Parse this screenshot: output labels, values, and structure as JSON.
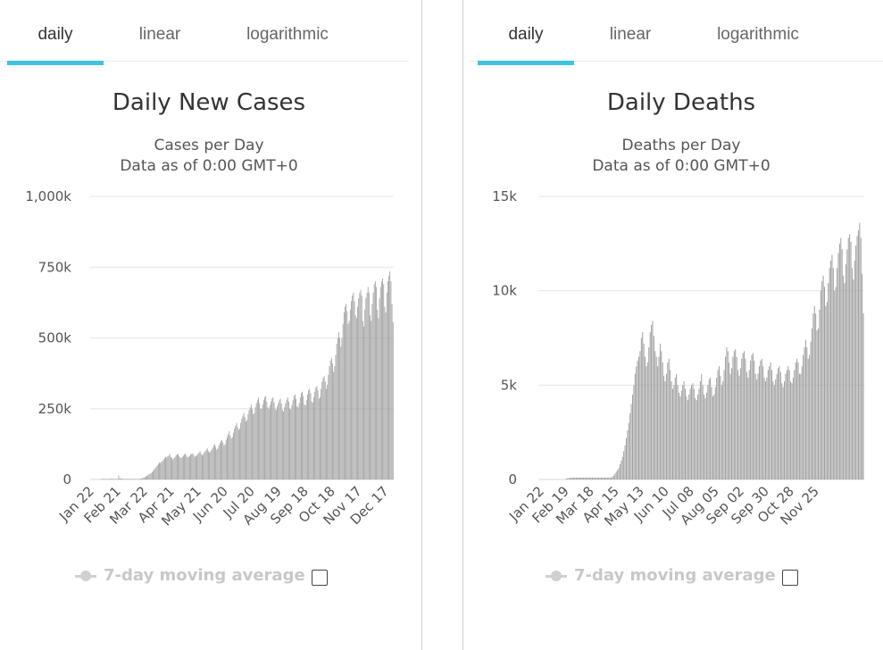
{
  "panels": [
    {
      "tabs": [
        "daily",
        "linear",
        "logarithmic"
      ],
      "active_tab": 0,
      "title": "Daily New Cases",
      "subtitle_1": "Cases per Day",
      "subtitle_2": "Data as of 0:00 GMT+0",
      "legend_label": "7-day moving average",
      "accent": "#3fc3df"
    },
    {
      "tabs": [
        "daily",
        "linear",
        "logarithmic"
      ],
      "active_tab": 0,
      "title": "Daily Deaths",
      "subtitle_1": "Deaths per Day",
      "subtitle_2": "Data as of 0:00 GMT+0",
      "legend_label": "7-day moving average",
      "accent": "#3fc3df"
    }
  ],
  "chart_data": [
    {
      "type": "bar",
      "title": "Daily New Cases",
      "subtitle": "Cases per Day",
      "xlabel": "",
      "ylabel": "",
      "x_start": "Jan 22",
      "x_tick_labels": [
        "Jan 22",
        "Feb 21",
        "Mar 22",
        "Apr 21",
        "May 21",
        "Jun 20",
        "Jul 20",
        "Aug 19",
        "Sep 18",
        "Oct 18",
        "Nov 17",
        "Dec 17"
      ],
      "y_tick_labels": [
        "0",
        "250k",
        "500k",
        "750k",
        "1,000k"
      ],
      "ylim": [
        0,
        1000000
      ],
      "grid": true,
      "bar_color": "#9e9e9e",
      "series": [
        {
          "values": [
            0,
            0,
            0,
            0,
            0,
            0,
            0,
            0,
            0,
            0,
            2000,
            2000,
            2000,
            2000,
            2000,
            2000,
            2000,
            2000,
            2000,
            2000,
            3000,
            3000,
            2000,
            2000,
            2000,
            2000,
            2000,
            14000,
            4000,
            4000,
            3000,
            2000,
            2000,
            2000,
            2000,
            2000,
            2000,
            2000,
            2000,
            2000,
            2000,
            2000,
            2000,
            2000,
            2000,
            2000,
            2000,
            2000,
            3000,
            3000,
            5000,
            7000,
            9000,
            11000,
            12000,
            15000,
            18000,
            20000,
            22000,
            26000,
            30000,
            35000,
            40000,
            45000,
            50000,
            55000,
            60000,
            58000,
            62000,
            65000,
            72000,
            75000,
            80000,
            78000,
            82000,
            85000,
            90000,
            80000,
            76000,
            70000,
            75000,
            80000,
            85000,
            88000,
            90000,
            82000,
            78000,
            76000,
            80000,
            84000,
            88000,
            92000,
            85000,
            78000,
            80000,
            84000,
            88000,
            90000,
            92000,
            86000,
            80000,
            82000,
            86000,
            90000,
            95000,
            100000,
            90000,
            85000,
            88000,
            95000,
            100000,
            105000,
            110000,
            100000,
            95000,
            98000,
            105000,
            112000,
            120000,
            125000,
            115000,
            105000,
            110000,
            120000,
            128000,
            135000,
            140000,
            130000,
            120000,
            125000,
            140000,
            150000,
            160000,
            170000,
            155000,
            145000,
            150000,
            165000,
            180000,
            190000,
            200000,
            185000,
            175000,
            180000,
            200000,
            215000,
            225000,
            235000,
            220000,
            205000,
            210000,
            230000,
            245000,
            255000,
            265000,
            250000,
            230000,
            235000,
            255000,
            270000,
            280000,
            290000,
            270000,
            250000,
            250000,
            265000,
            280000,
            290000,
            295000,
            275000,
            255000,
            250000,
            262000,
            275000,
            285000,
            290000,
            272000,
            250000,
            245000,
            258000,
            270000,
            280000,
            285000,
            268000,
            245000,
            240000,
            255000,
            270000,
            282000,
            290000,
            275000,
            250000,
            248000,
            262000,
            280000,
            295000,
            300000,
            285000,
            258000,
            255000,
            270000,
            290000,
            305000,
            310000,
            295000,
            265000,
            262000,
            280000,
            300000,
            315000,
            320000,
            305000,
            275000,
            272000,
            290000,
            310000,
            325000,
            330000,
            315000,
            285000,
            290000,
            320000,
            345000,
            360000,
            365000,
            345000,
            320000,
            335000,
            370000,
            400000,
            420000,
            430000,
            410000,
            380000,
            400000,
            440000,
            480000,
            500000,
            520000,
            500000,
            470000,
            500000,
            550000,
            590000,
            610000,
            620000,
            595000,
            550000,
            560000,
            600000,
            630000,
            650000,
            660000,
            630000,
            580000,
            570000,
            610000,
            640000,
            660000,
            670000,
            650000,
            560000,
            540000,
            600000,
            640000,
            660000,
            680000,
            660000,
            580000,
            560000,
            620000,
            660000,
            690000,
            700000,
            680000,
            600000,
            570000,
            640000,
            680000,
            700000,
            710000,
            690000,
            610000,
            590000,
            660000,
            700000,
            720000,
            735000,
            700000,
            620000,
            555000
          ]
        }
      ]
    },
    {
      "type": "bar",
      "title": "Daily Deaths",
      "subtitle": "Deaths per Day",
      "xlabel": "",
      "ylabel": "",
      "x_start": "Jan 22",
      "x_tick_labels": [
        "Jan 22",
        "Feb 19",
        "Mar 18",
        "Apr 15",
        "May 13",
        "Jun 10",
        "Jul 08",
        "Aug 05",
        "Sep 02",
        "Sep 30",
        "Oct 28",
        "Nov 25"
      ],
      "y_tick_labels": [
        "0",
        "5k",
        "10k",
        "15k"
      ],
      "ylim": [
        0,
        15000
      ],
      "grid": true,
      "bar_color": "#9e9e9e",
      "series": [
        {
          "values": [
            0,
            0,
            0,
            0,
            0,
            0,
            0,
            0,
            0,
            0,
            0,
            0,
            0,
            0,
            0,
            0,
            0,
            0,
            0,
            0,
            0,
            50,
            60,
            70,
            80,
            90,
            100,
            100,
            100,
            100,
            100,
            100,
            100,
            100,
            100,
            100,
            100,
            100,
            100,
            100,
            100,
            100,
            100,
            100,
            100,
            100,
            100,
            100,
            100,
            100,
            100,
            100,
            100,
            100,
            100,
            100,
            100,
            100,
            150,
            200,
            300,
            400,
            500,
            600,
            800,
            1000,
            1200,
            1500,
            1800,
            2200,
            2600,
            3000,
            3500,
            4000,
            4500,
            5000,
            5600,
            6000,
            6300,
            6500,
            6800,
            7500,
            7800,
            7200,
            6500,
            6000,
            6200,
            7000,
            7800,
            8200,
            8400,
            7600,
            6800,
            6500,
            6000,
            6500,
            7200,
            6800,
            6200,
            5500,
            5200,
            5600,
            6200,
            6400,
            5800,
            5200,
            4800,
            5000,
            5400,
            5600,
            5000,
            4600,
            4400,
            4700,
            5000,
            5200,
            4800,
            4400,
            4200,
            4500,
            4800,
            5000,
            5100,
            4800,
            4300,
            4200,
            4500,
            4800,
            5200,
            5600,
            5000,
            4500,
            4300,
            4600,
            5000,
            5300,
            5400,
            4900,
            4400,
            4500,
            4900,
            5400,
            5800,
            6000,
            5500,
            5000,
            5200,
            5800,
            6500,
            7000,
            6800,
            6200,
            5600,
            5900,
            6500,
            6800,
            6900,
            6500,
            5800,
            5500,
            5900,
            6400,
            6700,
            6800,
            6400,
            5700,
            5400,
            5800,
            6300,
            6600,
            6700,
            6300,
            5600,
            5300,
            5600,
            6000,
            6300,
            6400,
            6000,
            5400,
            5200,
            5400,
            5800,
            6000,
            6200,
            5800,
            5200,
            5000,
            5300,
            5600,
            5900,
            6000,
            5700,
            5100,
            4900,
            5200,
            5600,
            5800,
            6000,
            5800,
            5200,
            5100,
            5400,
            5800,
            6200,
            6400,
            6200,
            5600,
            5600,
            6000,
            6600,
            7000,
            7400,
            7000,
            6400,
            6600,
            7300,
            8000,
            8800,
            9200,
            8800,
            7900,
            8000,
            9000,
            10000,
            10500,
            10800,
            10200,
            9200,
            9400,
            10400,
            11200,
            11600,
            11900,
            11200,
            10000,
            10200,
            11200,
            12000,
            12500,
            12800,
            12200,
            10800,
            10400,
            11400,
            12200,
            12800,
            13000,
            12600,
            11200,
            10600,
            11600,
            12400,
            12900,
            13200,
            13600,
            12800,
            10900,
            8800
          ]
        }
      ]
    }
  ]
}
